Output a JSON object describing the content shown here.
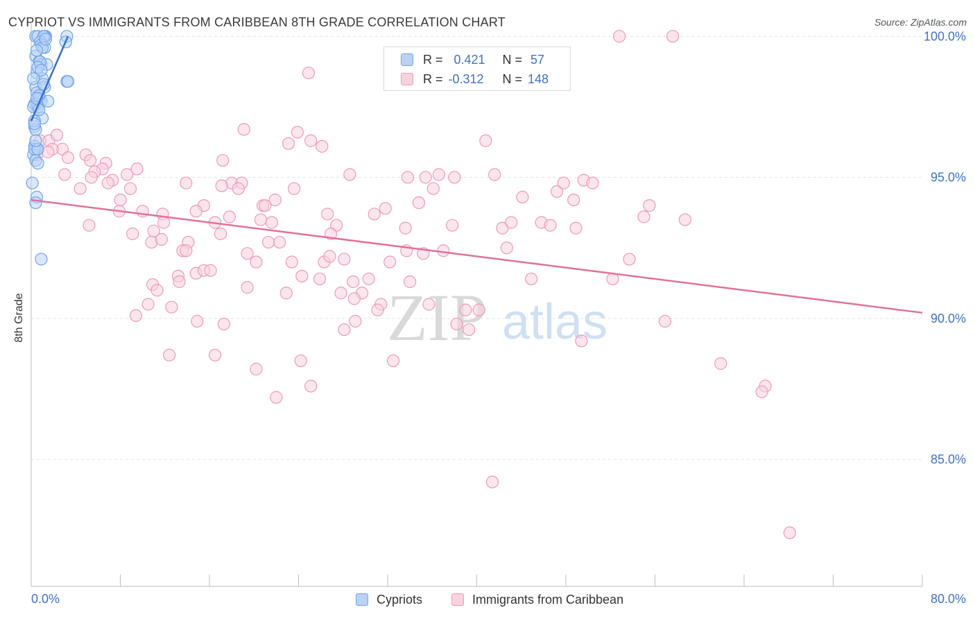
{
  "title": "CYPRIOT VS IMMIGRANTS FROM CARIBBEAN 8TH GRADE CORRELATION CHART",
  "source": "Source: ZipAtlas.com",
  "legend": {
    "rows": [
      {
        "r_label": "R =",
        "r_value": "0.421",
        "n_label": "N =",
        "n_value": "57"
      },
      {
        "r_label": "R =",
        "r_value": "-0.312",
        "n_label": "N =",
        "n_value": "148"
      }
    ]
  },
  "watermark": {
    "zip": "ZIP",
    "atlas": "atlas"
  },
  "colors": {
    "blue": "#6ea3e8",
    "blue_fill": "#b9d3f5",
    "blue_line": "#2e6fd1",
    "pink": "#ee9ab5",
    "pink_fill": "#f9d2de",
    "pink_line": "#e0709a",
    "tick_label": "#3d72c8",
    "grid": "#e3e3e3"
  },
  "chart_data": {
    "type": "scatter",
    "title": "CYPRIOT VS IMMIGRANTS FROM CARIBBEAN 8TH GRADE CORRELATION CHART",
    "xlabel": "",
    "ylabel": "8th Grade",
    "x_range": [
      0,
      80
    ],
    "y_range": [
      80.5,
      100.5
    ],
    "x_tick_labels": [
      "0.0%",
      "80.0%"
    ],
    "y_ticks": [
      85,
      90,
      95,
      100
    ],
    "y_tick_labels": [
      "85.0%",
      "90.0%",
      "95.0%",
      "100.0%"
    ],
    "grid": true,
    "legend_position": "bottom",
    "series": [
      {
        "name": "Cypriots",
        "r": 0.421,
        "n": 57,
        "trend": [
          [
            0.0,
            97.0
          ],
          [
            3.3,
            100.0
          ]
        ],
        "points": [
          [
            0.4,
            100.0
          ],
          [
            0.6,
            100.0
          ],
          [
            1.3,
            100.0
          ],
          [
            1.2,
            100.0
          ],
          [
            1.1,
            100.0
          ],
          [
            3.2,
            100.0
          ],
          [
            0.8,
            99.8
          ],
          [
            0.9,
            99.7
          ],
          [
            3.1,
            99.8
          ],
          [
            1.2,
            99.6
          ],
          [
            1.0,
            99.6
          ],
          [
            0.4,
            99.3
          ],
          [
            0.7,
            99.1
          ],
          [
            0.9,
            99.0
          ],
          [
            1.4,
            99.0
          ],
          [
            0.5,
            98.7
          ],
          [
            1.0,
            98.5
          ],
          [
            3.2,
            98.4
          ],
          [
            3.3,
            98.4
          ],
          [
            0.4,
            98.2
          ],
          [
            1.2,
            98.2
          ],
          [
            0.5,
            98.0
          ],
          [
            0.7,
            97.9
          ],
          [
            0.8,
            97.8
          ],
          [
            0.9,
            97.7
          ],
          [
            1.5,
            97.7
          ],
          [
            0.3,
            97.6
          ],
          [
            0.5,
            97.6
          ],
          [
            0.6,
            97.5
          ],
          [
            0.2,
            97.5
          ],
          [
            1.0,
            97.1
          ],
          [
            0.3,
            96.8
          ],
          [
            0.4,
            96.7
          ],
          [
            0.3,
            96.1
          ],
          [
            0.5,
            96.0
          ],
          [
            0.2,
            95.8
          ],
          [
            0.4,
            95.6
          ],
          [
            0.6,
            95.5
          ],
          [
            0.1,
            94.8
          ],
          [
            0.5,
            94.3
          ],
          [
            0.4,
            94.1
          ],
          [
            0.9,
            92.1
          ],
          [
            0.3,
            96.0
          ],
          [
            0.6,
            96.0
          ],
          [
            0.7,
            97.9
          ],
          [
            0.2,
            98.5
          ],
          [
            0.8,
            99.1
          ],
          [
            1.1,
            98.3
          ],
          [
            0.5,
            97.8
          ],
          [
            0.3,
            97.0
          ],
          [
            0.4,
            96.3
          ],
          [
            0.6,
            98.9
          ],
          [
            0.7,
            97.4
          ],
          [
            0.9,
            98.8
          ],
          [
            0.5,
            99.5
          ],
          [
            1.3,
            99.9
          ],
          [
            0.3,
            96.9
          ]
        ]
      },
      {
        "name": "Immigrants from Caribbean",
        "r": -0.312,
        "n": 148,
        "trend": [
          [
            0.0,
            94.2
          ],
          [
            80.0,
            90.2
          ]
        ],
        "points": [
          [
            52.8,
            100.0
          ],
          [
            57.6,
            100.0
          ],
          [
            24.9,
            98.7
          ],
          [
            19.1,
            96.7
          ],
          [
            23.9,
            96.6
          ],
          [
            40.8,
            96.3
          ],
          [
            23.1,
            96.2
          ],
          [
            25.1,
            96.3
          ],
          [
            26.1,
            96.1
          ],
          [
            0.8,
            96.3
          ],
          [
            1.6,
            96.3
          ],
          [
            2.3,
            96.5
          ],
          [
            2.8,
            96.0
          ],
          [
            1.9,
            96.0
          ],
          [
            1.5,
            95.9
          ],
          [
            0.5,
            95.8
          ],
          [
            3.3,
            95.7
          ],
          [
            4.9,
            95.8
          ],
          [
            5.3,
            95.6
          ],
          [
            6.7,
            95.5
          ],
          [
            17.2,
            95.6
          ],
          [
            6.4,
            95.3
          ],
          [
            5.7,
            95.2
          ],
          [
            9.5,
            95.3
          ],
          [
            8.6,
            95.1
          ],
          [
            3.0,
            95.1
          ],
          [
            5.4,
            95.0
          ],
          [
            28.6,
            95.1
          ],
          [
            33.8,
            95.0
          ],
          [
            36.6,
            95.1
          ],
          [
            38.0,
            95.0
          ],
          [
            41.6,
            95.1
          ],
          [
            7.3,
            94.9
          ],
          [
            13.9,
            94.8
          ],
          [
            18.0,
            94.8
          ],
          [
            18.9,
            94.8
          ],
          [
            49.6,
            94.9
          ],
          [
            6.9,
            94.8
          ],
          [
            4.4,
            94.6
          ],
          [
            8.9,
            94.6
          ],
          [
            17.1,
            94.7
          ],
          [
            18.6,
            94.6
          ],
          [
            23.6,
            94.6
          ],
          [
            36.1,
            94.6
          ],
          [
            47.2,
            94.5
          ],
          [
            50.4,
            94.8
          ],
          [
            47.8,
            94.8
          ],
          [
            8.0,
            94.2
          ],
          [
            20.8,
            94.0
          ],
          [
            21.9,
            94.2
          ],
          [
            34.8,
            94.1
          ],
          [
            44.1,
            94.3
          ],
          [
            48.7,
            94.2
          ],
          [
            55.5,
            94.0
          ],
          [
            15.5,
            94.0
          ],
          [
            31.8,
            93.9
          ],
          [
            7.9,
            93.8
          ],
          [
            10.0,
            93.8
          ],
          [
            11.8,
            93.7
          ],
          [
            26.6,
            93.7
          ],
          [
            30.8,
            93.7
          ],
          [
            55.0,
            93.6
          ],
          [
            58.7,
            93.5
          ],
          [
            5.2,
            93.3
          ],
          [
            11.9,
            93.4
          ],
          [
            16.5,
            93.4
          ],
          [
            17.8,
            93.6
          ],
          [
            20.6,
            93.5
          ],
          [
            21.6,
            93.4
          ],
          [
            27.4,
            93.3
          ],
          [
            33.6,
            93.2
          ],
          [
            37.8,
            93.3
          ],
          [
            42.3,
            93.2
          ],
          [
            43.1,
            93.4
          ],
          [
            45.8,
            93.4
          ],
          [
            46.6,
            93.3
          ],
          [
            48.9,
            93.2
          ],
          [
            26.9,
            93.0
          ],
          [
            9.1,
            93.0
          ],
          [
            11.0,
            93.1
          ],
          [
            17.0,
            93.0
          ],
          [
            10.8,
            92.7
          ],
          [
            11.7,
            92.8
          ],
          [
            14.1,
            92.7
          ],
          [
            21.3,
            92.7
          ],
          [
            22.3,
            92.7
          ],
          [
            13.6,
            92.4
          ],
          [
            13.9,
            92.4
          ],
          [
            19.4,
            92.3
          ],
          [
            35.2,
            92.3
          ],
          [
            33.7,
            92.4
          ],
          [
            37.0,
            92.4
          ],
          [
            42.7,
            92.5
          ],
          [
            20.2,
            92.0
          ],
          [
            23.4,
            92.0
          ],
          [
            26.3,
            92.0
          ],
          [
            28.1,
            92.1
          ],
          [
            32.2,
            92.0
          ],
          [
            53.7,
            92.1
          ],
          [
            26.8,
            92.2
          ],
          [
            14.8,
            91.6
          ],
          [
            15.5,
            91.7
          ],
          [
            16.1,
            91.7
          ],
          [
            13.2,
            91.5
          ],
          [
            24.3,
            91.5
          ],
          [
            25.9,
            91.4
          ],
          [
            28.9,
            91.3
          ],
          [
            30.3,
            91.4
          ],
          [
            10.9,
            91.2
          ],
          [
            11.3,
            91.0
          ],
          [
            13.3,
            91.3
          ],
          [
            19.4,
            91.1
          ],
          [
            22.9,
            90.9
          ],
          [
            27.8,
            90.9
          ],
          [
            29.7,
            90.9
          ],
          [
            34.0,
            91.3
          ],
          [
            44.9,
            91.4
          ],
          [
            52.2,
            91.4
          ],
          [
            10.5,
            90.5
          ],
          [
            12.6,
            90.4
          ],
          [
            29.0,
            90.7
          ],
          [
            31.4,
            90.5
          ],
          [
            35.7,
            90.5
          ],
          [
            31.1,
            90.3
          ],
          [
            39.0,
            90.3
          ],
          [
            9.4,
            90.1
          ],
          [
            14.9,
            89.9
          ],
          [
            17.3,
            89.8
          ],
          [
            29.1,
            89.9
          ],
          [
            38.2,
            89.8
          ],
          [
            56.9,
            89.9
          ],
          [
            28.1,
            89.6
          ],
          [
            39.3,
            89.6
          ],
          [
            49.4,
            89.2
          ],
          [
            12.4,
            88.7
          ],
          [
            16.5,
            88.7
          ],
          [
            24.2,
            88.5
          ],
          [
            32.5,
            88.5
          ],
          [
            20.2,
            88.2
          ],
          [
            61.9,
            88.4
          ],
          [
            65.9,
            87.6
          ],
          [
            65.6,
            87.4
          ],
          [
            25.1,
            87.6
          ],
          [
            22.0,
            87.2
          ],
          [
            41.4,
            84.2
          ],
          [
            68.1,
            82.4
          ],
          [
            40.2,
            90.3
          ],
          [
            21.0,
            94.0
          ],
          [
            35.4,
            95.0
          ],
          [
            14.8,
            93.8
          ]
        ]
      }
    ]
  }
}
